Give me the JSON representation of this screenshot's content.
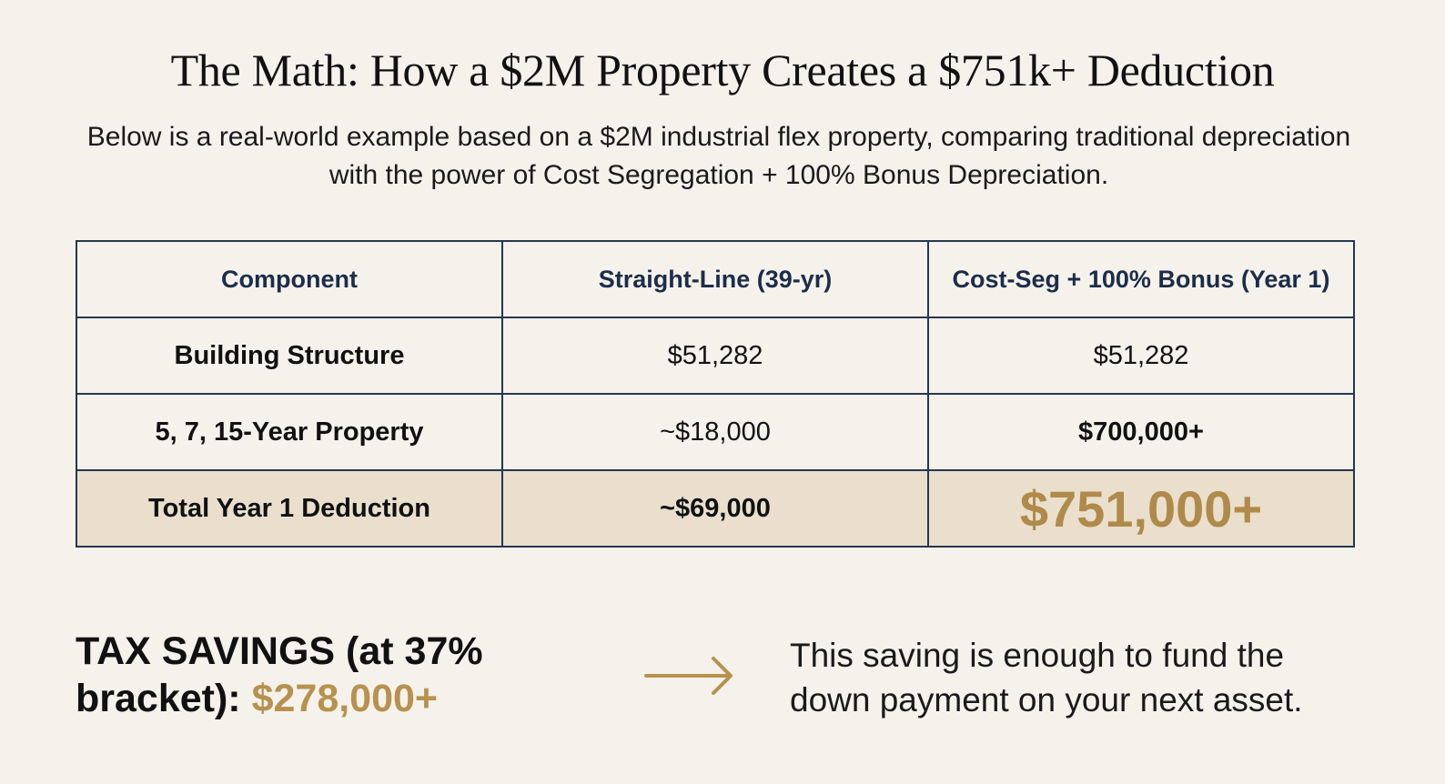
{
  "title": "The Math: How a $2M Property Creates a $751k+ Deduction",
  "subtitle": "Below is a real-world example based on a $2M industrial flex property, comparing traditional depreciation with the power of Cost Segregation + 100% Bonus Depreciation.",
  "table": {
    "headers": [
      "Component",
      "Straight-Line (39-yr)",
      "Cost-Seg + 100% Bonus (Year 1)"
    ],
    "rows": [
      [
        "Building Structure",
        "$51,282",
        "$51,282"
      ],
      [
        "5, 7, 15-Year Property",
        "~$18,000",
        "$700,000+"
      ],
      [
        "Total Year 1 Deduction",
        "~$69,000",
        "$751,000+"
      ]
    ]
  },
  "savings": {
    "label": "TAX SAVINGS (at 37% bracket):",
    "amount": "$278,000+"
  },
  "arrow_icon": "arrow-right-icon",
  "note": "This saving is enough to fund the down payment on your next asset.",
  "colors": {
    "accent_gold": "#b08a4a",
    "navy": "#27364f",
    "total_row_bg": "#e9dfcc",
    "background": "#f5f2ec"
  }
}
